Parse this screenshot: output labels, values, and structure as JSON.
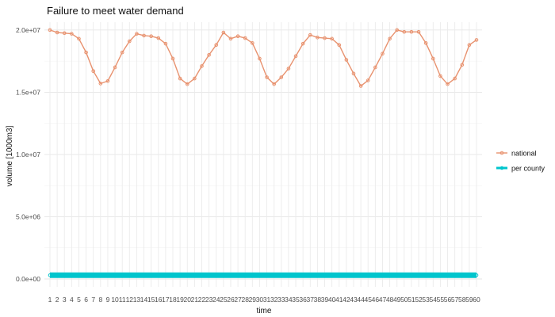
{
  "chart_data": {
    "type": "line",
    "title": "Failure to meet water demand",
    "xlabel": "time",
    "ylabel": "volume [1000m3]",
    "x": [
      1,
      2,
      3,
      4,
      5,
      6,
      7,
      8,
      9,
      10,
      11,
      12,
      13,
      14,
      15,
      16,
      17,
      18,
      19,
      20,
      21,
      22,
      23,
      24,
      25,
      26,
      27,
      28,
      29,
      30,
      31,
      32,
      33,
      34,
      35,
      36,
      37,
      38,
      39,
      40,
      41,
      42,
      43,
      44,
      45,
      46,
      47,
      48,
      49,
      50,
      51,
      52,
      53,
      54,
      55,
      56,
      57,
      58,
      59,
      60
    ],
    "xlim": [
      1,
      60
    ],
    "ylim": [
      0,
      20500000
    ],
    "yticks": [
      0,
      5000000,
      10000000,
      15000000,
      20000000
    ],
    "ytick_labels": [
      "0.0e+00",
      "5.0e+06",
      "1.0e+07",
      "1.5e+07",
      "2.0e+07"
    ],
    "grid": true,
    "legend_position": "right",
    "series": [
      {
        "name": "national",
        "color": "#e8926f",
        "values": [
          20000000,
          19800000,
          19750000,
          19700000,
          19300000,
          18200000,
          16700000,
          15700000,
          15900000,
          17000000,
          18200000,
          19100000,
          19700000,
          19550000,
          19500000,
          19350000,
          18900000,
          17700000,
          16100000,
          15650000,
          16100000,
          17100000,
          18000000,
          18800000,
          19800000,
          19300000,
          19500000,
          19350000,
          18950000,
          17700000,
          16200000,
          15650000,
          16200000,
          16900000,
          17900000,
          18900000,
          19600000,
          19400000,
          19350000,
          19300000,
          18800000,
          17600000,
          16500000,
          15500000,
          15950000,
          17000000,
          18100000,
          19300000,
          20000000,
          19850000,
          19850000,
          19850000,
          18950000,
          17700000,
          16300000,
          15650000,
          16100000,
          17200000,
          18800000,
          19200000
        ]
      },
      {
        "name": "per county",
        "color": "#00c5cd",
        "values": [
          300000,
          300000,
          300000,
          300000,
          300000,
          300000,
          300000,
          300000,
          300000,
          300000,
          300000,
          300000,
          300000,
          300000,
          300000,
          300000,
          300000,
          300000,
          300000,
          300000,
          300000,
          300000,
          300000,
          300000,
          300000,
          300000,
          300000,
          300000,
          300000,
          300000,
          300000,
          300000,
          300000,
          300000,
          300000,
          300000,
          300000,
          300000,
          300000,
          300000,
          300000,
          300000,
          300000,
          300000,
          300000,
          300000,
          300000,
          300000,
          300000,
          300000,
          300000,
          300000,
          300000,
          300000,
          300000,
          300000,
          300000,
          300000,
          300000,
          300000
        ]
      }
    ]
  }
}
